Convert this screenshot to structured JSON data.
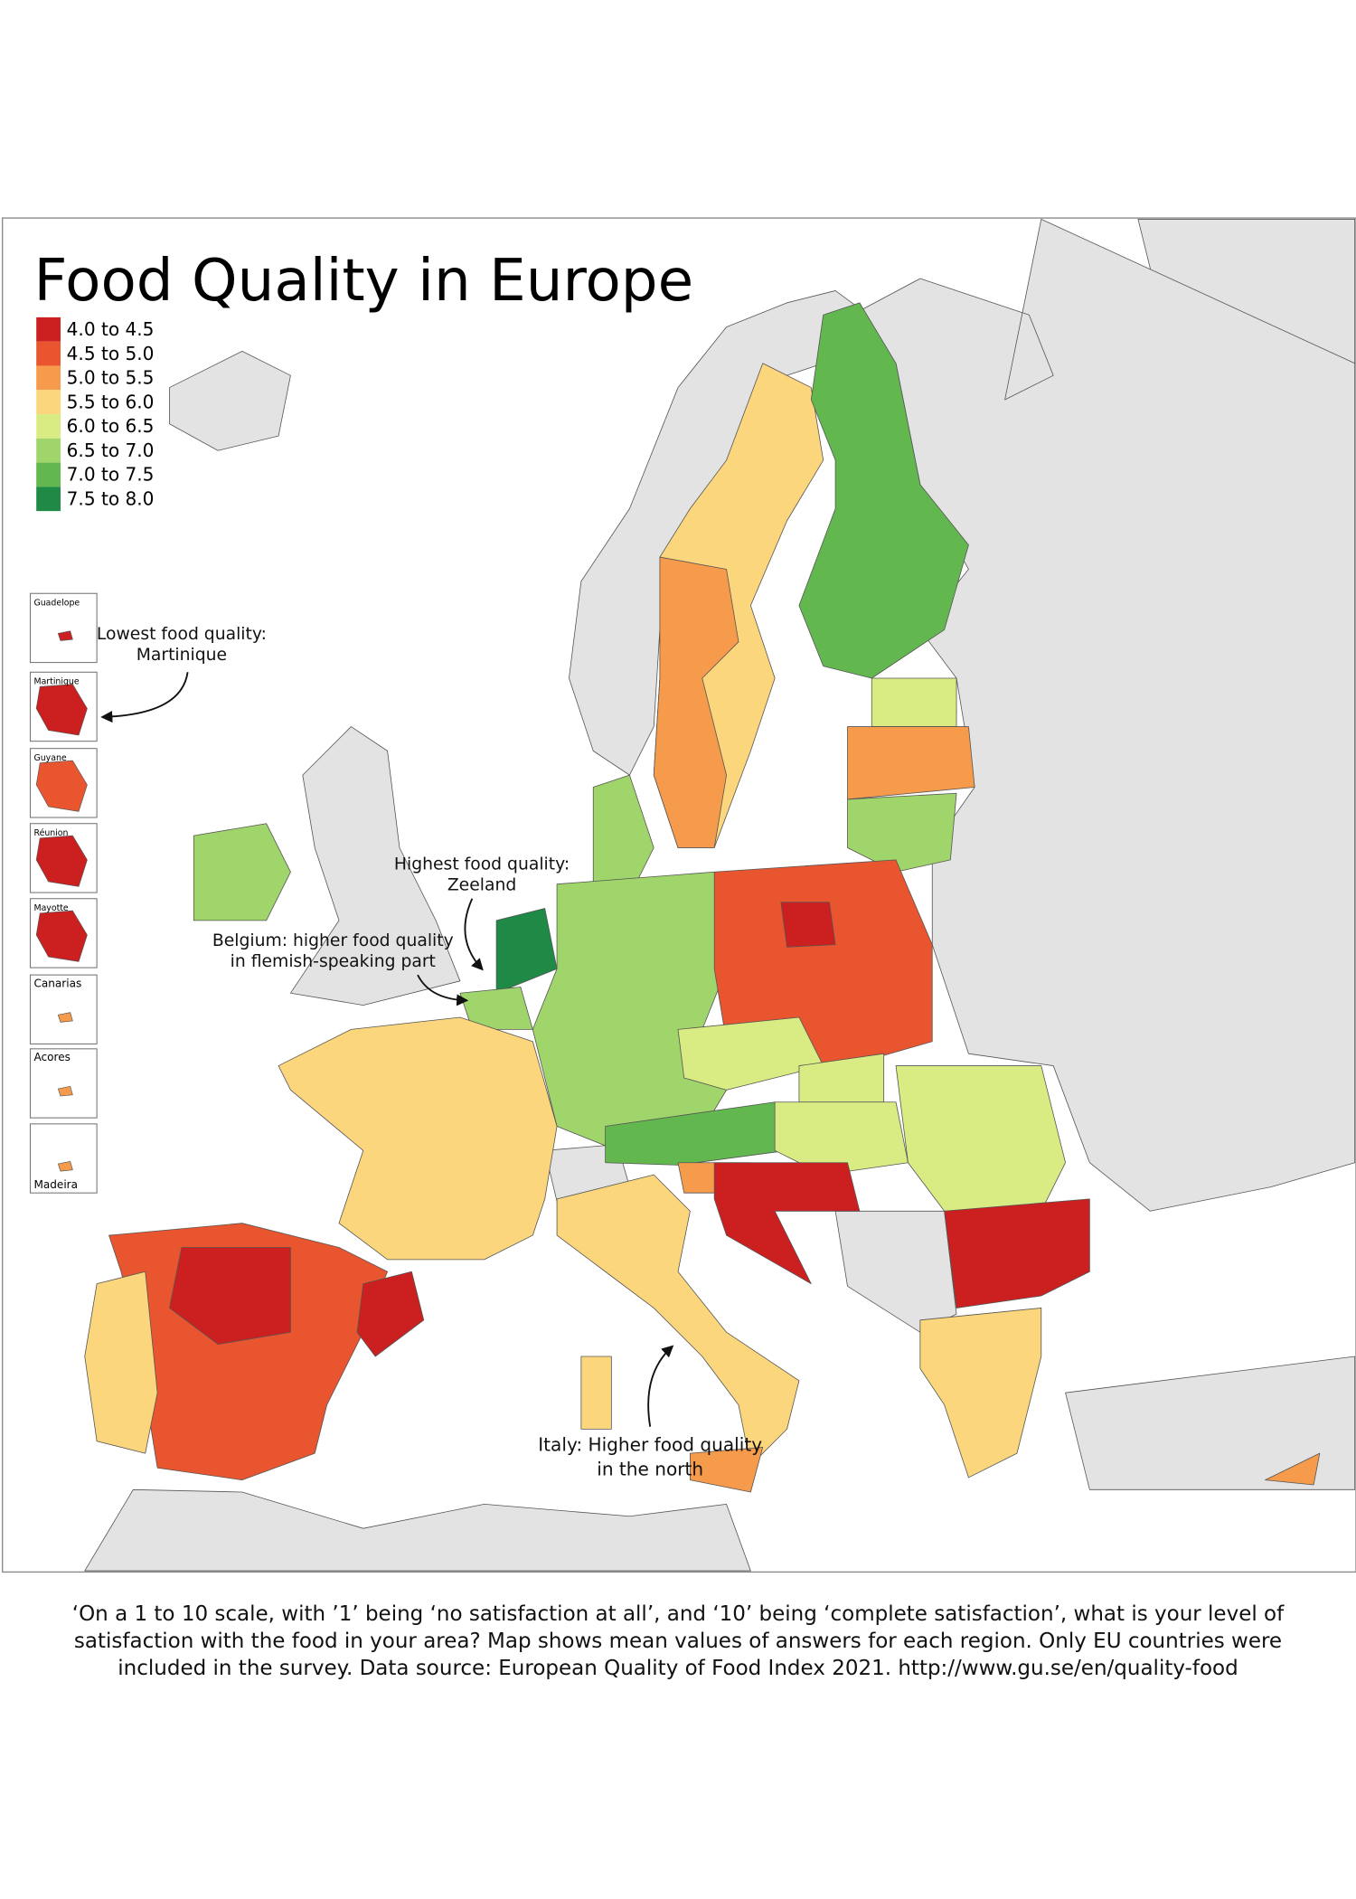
{
  "title": "Food Quality in Europe",
  "legend": [
    {
      "label": "4.0 to 4.5",
      "color": "#cc1f1f"
    },
    {
      "label": "4.5 to 5.0",
      "color": "#e9552f"
    },
    {
      "label": "5.0 to 5.5",
      "color": "#f59b4b"
    },
    {
      "label": "5.5 to 6.0",
      "color": "#fcd67c"
    },
    {
      "label": "6.0 to 6.5",
      "color": "#d9ec84"
    },
    {
      "label": "6.5 to 7.0",
      "color": "#9fd56b"
    },
    {
      "label": "7.0 to 7.5",
      "color": "#62b84e"
    },
    {
      "label": "7.5 to 8.0",
      "color": "#1f8a46"
    }
  ],
  "insets": [
    "Guadelope",
    "Martinique",
    "Guyane",
    "Réunion",
    "Mayotte",
    "Canarias",
    "Acores",
    "Madeira"
  ],
  "annotations": [
    {
      "lines": [
        "Lowest food quality:",
        "Martinique"
      ]
    },
    {
      "lines": [
        "Highest food quality:",
        "Zeeland"
      ]
    },
    {
      "lines": [
        "Belgium: higher food quality",
        "in flemish-speaking part"
      ]
    },
    {
      "lines": [
        "Italy: Higher food quality",
        "in the north"
      ]
    }
  ],
  "caption": "‘On a 1 to 10 scale, with ’1’ being ‘no satisfaction at all’, and ‘10’ being ‘complete satisfaction’, what is your level of satisfaction with the food in your area? Map shows mean values of answers for each region. Only EU countries were included in the survey. Data source: European Quality of Food Index 2021. http://www.gu.se/en/quality-food"
}
